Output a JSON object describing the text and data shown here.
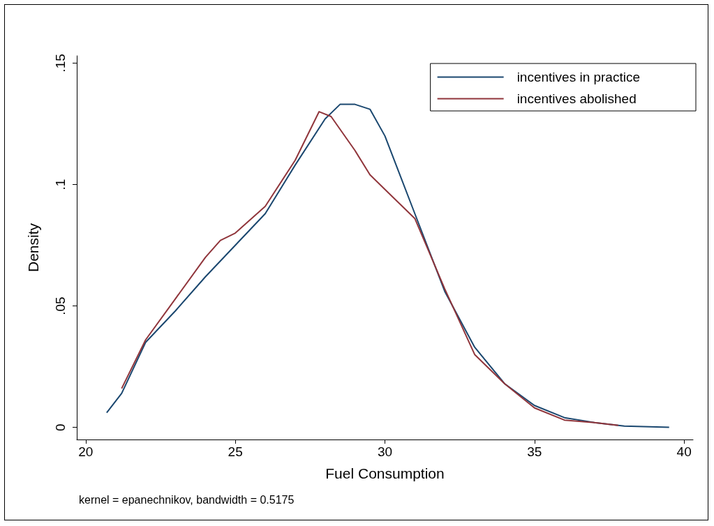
{
  "chart_data": {
    "type": "line",
    "xlabel": "Fuel Consumption",
    "ylabel": "Density",
    "annotations": [
      "kernel = epanechnikov, bandwidth = 0.5175"
    ],
    "xlim": [
      19.7,
      40.3
    ],
    "xticks": [
      20,
      25,
      30,
      35,
      40
    ],
    "ylim": [
      -0.005,
      0.153
    ],
    "yticks": [
      {
        "value": 0,
        "label": "0"
      },
      {
        "value": 0.05,
        "label": ".05"
      },
      {
        "value": 0.1,
        "label": ".1"
      },
      {
        "value": 0.15,
        "label": ".15"
      }
    ],
    "grid": false,
    "legend": "top right",
    "marker": "none",
    "line_style": "solid",
    "series": [
      {
        "name": "incentives in practice",
        "color": "#1a476f",
        "x": [
          20.7,
          21.2,
          22,
          23,
          24,
          25,
          26,
          27,
          28,
          28.5,
          29,
          29.5,
          30,
          31,
          32,
          33,
          34,
          35,
          36,
          37,
          38,
          39.5
        ],
        "values": [
          0.006,
          0.014,
          0.035,
          0.048,
          0.062,
          0.075,
          0.088,
          0.108,
          0.127,
          0.133,
          0.133,
          0.131,
          0.12,
          0.088,
          0.056,
          0.033,
          0.018,
          0.009,
          0.004,
          0.002,
          0.0005,
          0
        ]
      },
      {
        "name": "incentives abolished",
        "color": "#90353b",
        "x": [
          21.2,
          22,
          23,
          24,
          24.5,
          25,
          26,
          27,
          27.8,
          28.2,
          29,
          29.5,
          30,
          31,
          32,
          33,
          34,
          35,
          36,
          37,
          37.8
        ],
        "values": [
          0.016,
          0.036,
          0.053,
          0.07,
          0.077,
          0.08,
          0.091,
          0.11,
          0.13,
          0.128,
          0.114,
          0.104,
          0.098,
          0.086,
          0.057,
          0.03,
          0.018,
          0.008,
          0.003,
          0.002,
          0.0008
        ]
      }
    ]
  }
}
